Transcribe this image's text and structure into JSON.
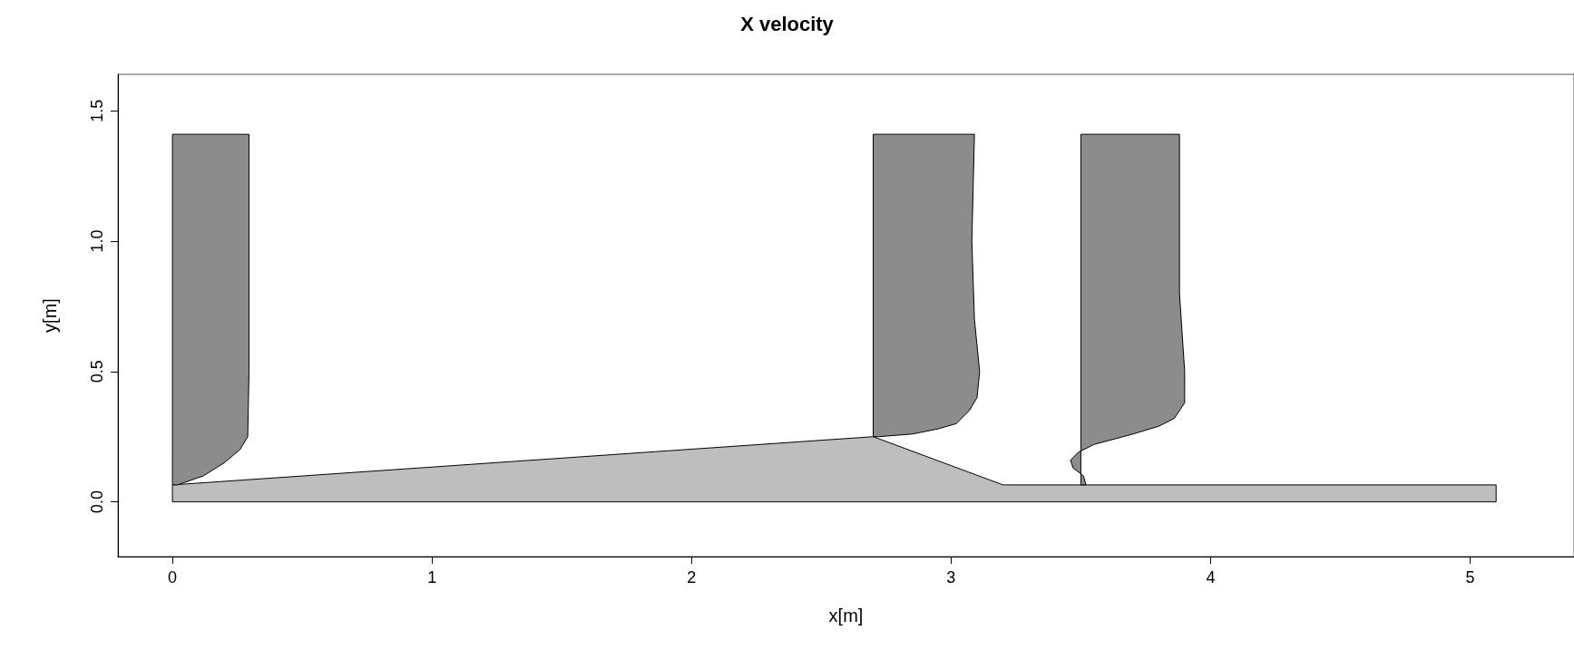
{
  "chart_data": {
    "type": "area",
    "title": "X velocity",
    "xlabel": "x[m]",
    "ylabel": "y[m]",
    "xlim": [
      -0.21,
      5.4
    ],
    "ylim": [
      -0.21,
      1.64
    ],
    "xticks": [
      0,
      1,
      2,
      3,
      4,
      5
    ],
    "yticks": [
      {
        "value": 0,
        "label": "0.0"
      },
      0.5,
      {
        "value": 1,
        "label": "1.0"
      },
      1.5
    ],
    "grid": false,
    "series": [
      {
        "color": "#bebebe",
        "x": [
          0,
          5.1,
          5.1,
          3.2,
          2.7,
          0,
          0
        ],
        "values": [
          0,
          0,
          0.065,
          0.065,
          0.25,
          0.065,
          0
        ]
      },
      {
        "color": "#8c8c8c",
        "x": [
          0,
          0.295,
          0.295,
          0.29,
          0.26,
          0.2,
          0.12,
          0.02,
          0
        ],
        "values": [
          1.41,
          1.41,
          0.5,
          0.25,
          0.2,
          0.15,
          0.1,
          0.065,
          0.065
        ]
      },
      {
        "color": "#8c8c8c",
        "x": [
          2.7,
          3.09,
          3.08,
          3.09,
          3.11,
          3.1,
          3.07,
          3.02,
          2.95,
          2.85,
          2.72,
          2.7
        ],
        "values": [
          1.41,
          1.41,
          1.0,
          0.7,
          0.5,
          0.4,
          0.35,
          0.3,
          0.28,
          0.26,
          0.25,
          0.25
        ]
      },
      {
        "color": "#8c8c8c",
        "x": [
          3.5,
          3.88,
          3.88,
          3.9,
          3.9,
          3.86,
          3.8,
          3.7,
          3.55,
          3.49,
          3.46,
          3.47,
          3.51,
          3.52,
          3.5
        ],
        "values": [
          1.41,
          1.41,
          0.8,
          0.5,
          0.38,
          0.32,
          0.29,
          0.26,
          0.22,
          0.19,
          0.16,
          0.13,
          0.1,
          0.065,
          0.065
        ]
      }
    ]
  }
}
